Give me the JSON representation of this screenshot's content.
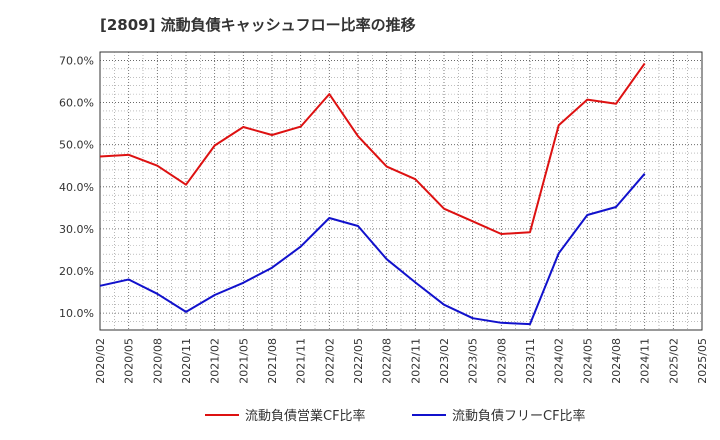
{
  "chart_data": {
    "type": "line",
    "title": "[2809]  流動負債キャッシュフロー比率の推移",
    "xlabel": "",
    "ylabel": "",
    "categories": [
      "2020/02",
      "2020/05",
      "2020/08",
      "2020/11",
      "2021/02",
      "2021/05",
      "2021/08",
      "2021/11",
      "2022/02",
      "2022/05",
      "2022/08",
      "2022/11",
      "2023/02",
      "2023/05",
      "2023/08",
      "2023/11",
      "2024/02",
      "2024/05",
      "2024/08",
      "2024/11",
      "2025/02",
      "2025/05"
    ],
    "ylim": [
      6,
      72
    ],
    "yticks": [
      10,
      20,
      30,
      40,
      50,
      60,
      70
    ],
    "ytick_labels": [
      "10.0%",
      "20.0%",
      "30.0%",
      "40.0%",
      "50.0%",
      "60.0%",
      "70.0%"
    ],
    "grid": true,
    "legend_position": "bottom",
    "series": [
      {
        "name": "流動負債営業CF比率",
        "color": "#dd1111",
        "values": [
          47.2,
          47.6,
          45.0,
          40.5,
          49.8,
          54.2,
          52.3,
          54.3,
          62.0,
          52.0,
          44.8,
          41.8,
          34.8,
          31.8,
          28.8,
          29.2,
          54.6,
          60.7,
          59.7,
          69.3,
          null,
          null
        ]
      },
      {
        "name": "流動負債フリーCF比率",
        "color": "#1111cc",
        "values": [
          16.5,
          18.0,
          14.6,
          10.3,
          14.3,
          17.2,
          20.8,
          25.8,
          32.6,
          30.7,
          22.8,
          17.3,
          12.0,
          8.8,
          7.7,
          7.4,
          24.2,
          33.3,
          35.2,
          43.1,
          null,
          null
        ]
      }
    ]
  }
}
